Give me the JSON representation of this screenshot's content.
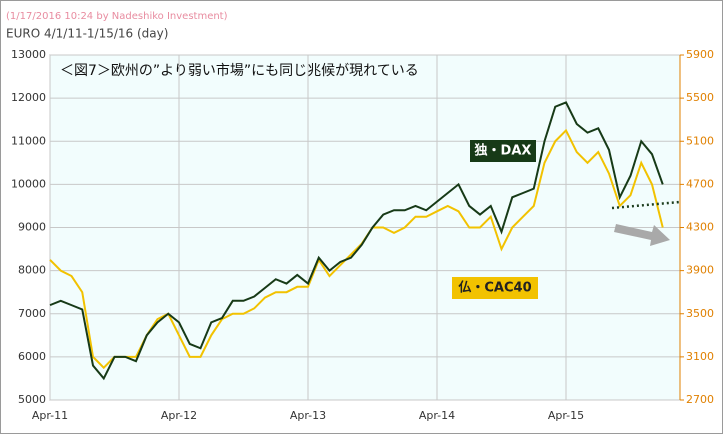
{
  "chart_data": {
    "type": "line",
    "header": "(1/17/2016 10:24 by Nadeshiko Investment)",
    "subtitle": "EURO  4/1/11-1/15/16 (day)",
    "title": "＜図7＞欧州の”より弱い市場”にも同じ兆候が現れている",
    "categories": [
      "Apr-11",
      null,
      null,
      null,
      null,
      null,
      null,
      null,
      null,
      null,
      null,
      null,
      "Apr-12",
      null,
      null,
      null,
      null,
      null,
      null,
      null,
      null,
      null,
      null,
      null,
      "Apr-13",
      null,
      null,
      null,
      null,
      null,
      null,
      null,
      null,
      null,
      null,
      null,
      "Apr-14",
      null,
      null,
      null,
      null,
      null,
      null,
      null,
      null,
      null,
      null,
      null,
      "Apr-15",
      null,
      null,
      null,
      null,
      null,
      null,
      null,
      null,
      null
    ],
    "series": [
      {
        "name": "独・DAX",
        "color": "#173a17",
        "axis": "y",
        "values": [
          7200,
          7300,
          7200,
          7100,
          5800,
          5500,
          6000,
          6000,
          5900,
          6500,
          6800,
          7000,
          6800,
          6300,
          6200,
          6800,
          6900,
          7300,
          7300,
          7400,
          7600,
          7800,
          7700,
          7900,
          7700,
          8300,
          8000,
          8200,
          8300,
          8600,
          9000,
          9300,
          9400,
          9400,
          9500,
          9400,
          9600,
          9800,
          10000,
          9500,
          9300,
          9500,
          8900,
          9700,
          9800,
          9900,
          11000,
          11800,
          11900,
          11400,
          11200,
          11300,
          10800,
          9700,
          10200,
          11000,
          10700,
          10000
        ]
      },
      {
        "name": "仏・CAC40",
        "color": "#f2c200",
        "axis": "y2",
        "values": [
          4000,
          3900,
          3850,
          3700,
          3100,
          3000,
          3100,
          3100,
          3100,
          3300,
          3450,
          3500,
          3300,
          3100,
          3100,
          3300,
          3450,
          3500,
          3500,
          3550,
          3650,
          3700,
          3700,
          3750,
          3750,
          4000,
          3850,
          3950,
          4050,
          4150,
          4300,
          4300,
          4250,
          4300,
          4400,
          4400,
          4450,
          4500,
          4450,
          4300,
          4300,
          4400,
          4100,
          4300,
          4400,
          4500,
          4900,
          5100,
          5200,
          5000,
          4900,
          5000,
          4800,
          4500,
          4600,
          4900,
          4700,
          4300
        ]
      }
    ],
    "ylim": [
      5000,
      13000
    ],
    "yticks": [
      5000,
      6000,
      7000,
      8000,
      9000,
      10000,
      11000,
      12000,
      13000
    ],
    "y2lim": [
      2700,
      5900
    ],
    "y2ticks": [
      2700,
      3100,
      3500,
      3900,
      4300,
      4700,
      5100,
      5500,
      5900
    ],
    "y2color": "#e08000",
    "grid": true
  }
}
